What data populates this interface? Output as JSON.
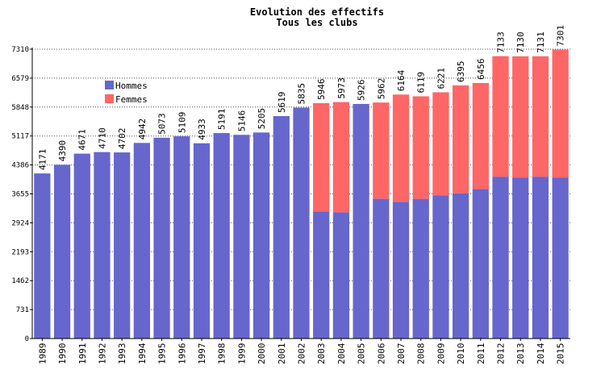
{
  "chart_data": {
    "type": "bar",
    "stacked": true,
    "title": "Evolution des effectifs",
    "subtitle": "Tous les clubs",
    "xlabel": "",
    "ylabel": "",
    "ylim": [
      0,
      7310
    ],
    "yticks": [
      0,
      731,
      1462,
      2193,
      2924,
      3655,
      4386,
      5117,
      5848,
      6579,
      7310
    ],
    "grid": true,
    "legend_position": "top-left",
    "categories": [
      "1989",
      "1990",
      "1991",
      "1992",
      "1993",
      "1994",
      "1995",
      "1996",
      "1997",
      "1998",
      "1999",
      "2000",
      "2001",
      "2002",
      "2003",
      "2004",
      "2005",
      "2006",
      "2007",
      "2008",
      "2009",
      "2010",
      "2011",
      "2012",
      "2013",
      "2014",
      "2015"
    ],
    "totals": [
      4171,
      4390,
      4671,
      4710,
      4702,
      4942,
      5073,
      5109,
      4933,
      5191,
      5146,
      5205,
      5619,
      5835,
      5946,
      5973,
      5926,
      5962,
      6164,
      6119,
      6221,
      6395,
      6456,
      7133,
      7130,
      7131,
      7301
    ],
    "series": [
      {
        "name": "Hommes",
        "color": "#6666cc",
        "values": [
          4171,
          4390,
          4671,
          4710,
          4702,
          4942,
          5073,
          5109,
          4933,
          5191,
          5146,
          5205,
          5619,
          5835,
          3210,
          3190,
          5926,
          3530,
          3450,
          3530,
          3620,
          3670,
          3780,
          4090,
          4070,
          4090,
          4070
        ]
      },
      {
        "name": "Femmes",
        "color": "#ff6666",
        "values": [
          0,
          0,
          0,
          0,
          0,
          0,
          0,
          0,
          0,
          0,
          0,
          0,
          0,
          0,
          2736,
          2783,
          0,
          2432,
          2714,
          2589,
          2601,
          2725,
          2676,
          3043,
          3060,
          3041,
          3231
        ]
      }
    ]
  }
}
